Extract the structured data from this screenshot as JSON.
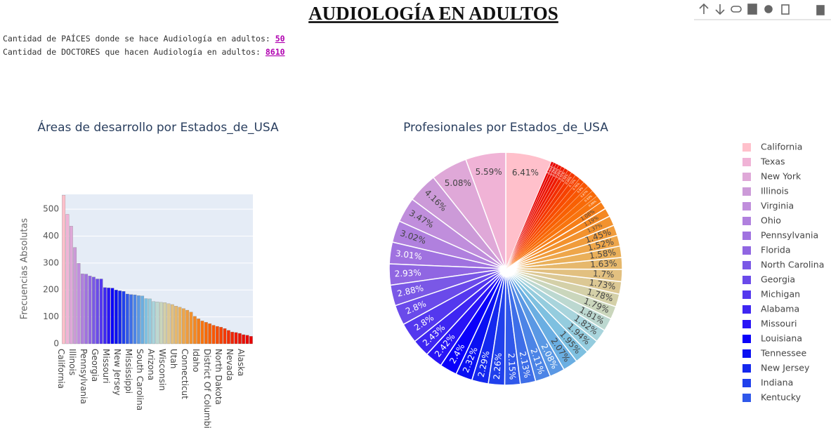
{
  "header": {
    "title": "AUDIOLOGÍA EN ADULTOS",
    "lines": [
      {
        "label": "Cantidad de PAÍCES donde se hace Audiología en adultos: ",
        "value": "50"
      },
      {
        "label": "Cantidad de DOCTORES que hacen Audiología en adultos: ",
        "value": "8610"
      }
    ]
  },
  "chart_data": [
    {
      "type": "bar",
      "title": "Áreas de desarrollo por Estados_de_USA",
      "y_label": "Frecuencias Absolutas",
      "categories": [
        "California",
        null,
        null,
        "Illinois",
        null,
        null,
        "Pennsylvania",
        null,
        null,
        "Georgia",
        null,
        null,
        "Missouri",
        null,
        null,
        "New Jersey",
        null,
        null,
        "Mississippi",
        null,
        null,
        "South Carolina",
        null,
        null,
        "Arizona",
        null,
        null,
        "Wisconsin",
        null,
        null,
        "Utah",
        null,
        null,
        "Connecticut",
        null,
        null,
        "Idaho",
        null,
        null,
        "District Of Columbia",
        null,
        null,
        "North Dakota",
        null,
        null,
        "Nevada",
        null,
        null,
        "Alaska",
        null,
        null
      ],
      "values": [
        552,
        481,
        437,
        358,
        299,
        260,
        259,
        252,
        248,
        241,
        241,
        209,
        208,
        207,
        200,
        197,
        195,
        185,
        183,
        182,
        179,
        178,
        168,
        167,
        157,
        156,
        154,
        153,
        149,
        146,
        140,
        136,
        131,
        125,
        118,
        102,
        93,
        85,
        80,
        75,
        69,
        65,
        62,
        57,
        50,
        44,
        42,
        39,
        34,
        32,
        28
      ],
      "colors": [
        "#ffc0cb",
        "#f0b3d6",
        "#dfa8d8",
        "#cc9ad8",
        "#c08edc",
        "#b080de",
        "#a072e0",
        "#9066e2",
        "#7a58e6",
        "#6a4aea",
        "#5438ee",
        "#3e26f2",
        "#2814f6",
        "#0a00fa",
        "#0a10f2",
        "#1428ee",
        "#2040ec",
        "#3058ea",
        "#3e6ee8",
        "#4c84e6",
        "#5a98e4",
        "#6aaee2",
        "#7ec0e0",
        "#94ccde",
        "#a8d4dc",
        "#bcd8d0",
        "#cad6bc",
        "#d4d0a8",
        "#dcc894",
        "#e2c080",
        "#e6b86c",
        "#eab05a",
        "#eea64a",
        "#f09c3c",
        "#f2922e",
        "#f48822",
        "#f67e18",
        "#f8740e",
        "#f86a08",
        "#f86004",
        "#f85602",
        "#f84c00",
        "#f64200",
        "#f43800",
        "#f22e00",
        "#f02400",
        "#ee1a00",
        "#ec1400",
        "#ea0e00",
        "#e80800",
        "#e60000"
      ],
      "ylim": [
        0,
        555
      ],
      "yticks": [
        0,
        100,
        200,
        300,
        400,
        500
      ],
      "grid": true
    },
    {
      "type": "pie",
      "title": "Profesionales por Estados_de_USA",
      "categories": [
        "California",
        "Texas",
        "New York",
        "Illinois",
        "Virginia",
        "Ohio",
        "Pennsylvania",
        "Florida",
        "North Carolina",
        "Georgia",
        "Michigan",
        "Alabama",
        "Missouri",
        "Louisiana",
        "Tennessee",
        "New Jersey",
        "Indiana",
        "Kentucky",
        null,
        null,
        null,
        null,
        null,
        null,
        null,
        null,
        null,
        null,
        null,
        null,
        null,
        null,
        null,
        null,
        null,
        null,
        null,
        null,
        null,
        null,
        null,
        null,
        null,
        null,
        null,
        null,
        null,
        null,
        null,
        null,
        null
      ],
      "values": [
        6.41,
        5.59,
        5.08,
        4.16,
        3.47,
        3.02,
        3.01,
        2.93,
        2.88,
        2.8,
        2.8,
        2.43,
        2.42,
        2.4,
        2.32,
        2.29,
        2.26,
        2.15,
        2.13,
        2.11,
        2.08,
        2.07,
        1.95,
        1.94,
        1.82,
        1.81,
        1.79,
        1.78,
        1.73,
        1.7,
        1.63,
        1.58,
        1.52,
        1.45,
        1.37,
        1.19,
        1.08,
        0.99,
        0.93,
        0.87,
        0.8,
        0.76,
        0.72,
        0.66,
        0.58,
        0.51,
        0.49,
        0.45,
        0.39,
        0.37,
        0.33
      ],
      "value_labels": [
        "6.41%",
        "5.59%",
        "5.08%",
        "4.16%",
        "3.47%",
        "3.02%",
        "3.01%",
        "2.93%",
        "2.88%",
        "2.8%",
        "2.8%",
        "2.43%",
        "2.42%",
        "2.4%",
        "2.32%",
        "2.29%",
        "2.26%",
        "2.15%",
        "2.13%",
        "2.11%",
        "2.08%",
        "2.07%",
        "1.95%",
        "1.94%",
        "1.82%",
        "1.81%",
        "1.79%",
        "1.78%",
        "1.73%",
        "1.7%",
        "1.63%",
        "1.58%",
        "1.52%",
        "1.45%",
        "1.37%",
        "1.19%",
        "1.08%",
        "0.99%",
        "0.93%",
        "0.87%",
        "0.8%",
        "0.76%",
        "0.72%",
        "0.66%",
        "0.58%",
        "0.51%",
        "0.49%",
        "0.45%",
        "0.39%",
        "0.37%",
        "0.33%"
      ],
      "colors": [
        "#ffc0cb",
        "#f0b3d6",
        "#dfa8d8",
        "#cc9ad8",
        "#c08edc",
        "#b080de",
        "#a072e0",
        "#9066e2",
        "#7a58e6",
        "#6a4aea",
        "#5438ee",
        "#3e26f2",
        "#2814f6",
        "#0a00fa",
        "#0a10f2",
        "#1428ee",
        "#2040ec",
        "#3058ea",
        "#3e6ee8",
        "#4c84e6",
        "#5a98e4",
        "#6aaee2",
        "#7ec0e0",
        "#94ccde",
        "#a8d4dc",
        "#bcd8d0",
        "#cad6bc",
        "#d4d0a8",
        "#dcc894",
        "#e2c080",
        "#e6b86c",
        "#eab05a",
        "#eea64a",
        "#f09c3c",
        "#f2922e",
        "#f48822",
        "#f67e18",
        "#f8740e",
        "#f86a08",
        "#f86004",
        "#f85602",
        "#f84c00",
        "#f64200",
        "#f43800",
        "#f22e00",
        "#f02400",
        "#ee1a00",
        "#ec1400",
        "#ea0e00",
        "#e80800",
        "#e60000"
      ],
      "legend": "right"
    }
  ]
}
